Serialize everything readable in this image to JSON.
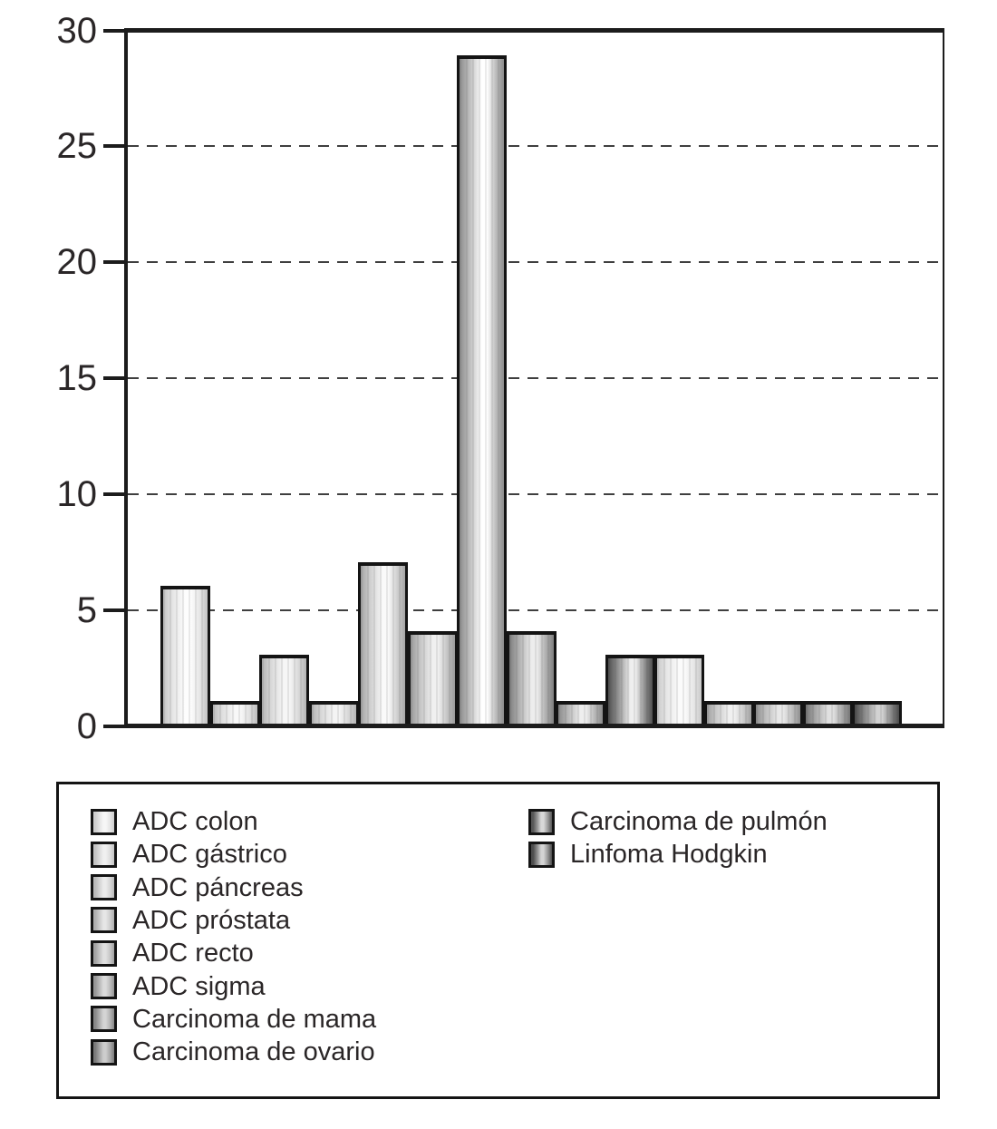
{
  "figure": {
    "background": "#ffffff"
  },
  "colors": {
    "axis": "#1c1c1c",
    "text": "#2a2627",
    "grid": "#3f3f3f",
    "bar_border": "#141414",
    "legend_border": "#141414"
  },
  "chart_data": {
    "type": "bar",
    "title": "",
    "xlabel": "",
    "ylabel": "",
    "ylim": [
      0,
      30
    ],
    "yticks": [
      0,
      5,
      10,
      15,
      20,
      25,
      30
    ],
    "gridlines_at": [
      5,
      10,
      15,
      20,
      25
    ],
    "grid_style": "horizontal-dashed",
    "x_tick_labels": [],
    "values": [
      6,
      1,
      3,
      1,
      7,
      4,
      29,
      4,
      1,
      3,
      3,
      1,
      1,
      1,
      1
    ],
    "bars": [
      {
        "value": 6,
        "edge": "#c2c2c2",
        "mid": "#e6e6e6",
        "hi": "#fdfdfd"
      },
      {
        "value": 1,
        "edge": "#bdbdbd",
        "mid": "#e0e0e0",
        "hi": "#f8f8f8"
      },
      {
        "value": 3,
        "edge": "#b5b5b5",
        "mid": "#dadada",
        "hi": "#f6f6f6"
      },
      {
        "value": 1,
        "edge": "#b5b5b5",
        "mid": "#d8d8d8",
        "hi": "#f4f4f4"
      },
      {
        "value": 7,
        "edge": "#a5a5a5",
        "mid": "#d0d0d0",
        "hi": "#fafafa"
      },
      {
        "value": 4,
        "edge": "#9b9b9b",
        "mid": "#c6c6c6",
        "hi": "#f0f0f0"
      },
      {
        "value": 29,
        "edge": "#8d8d8d",
        "mid": "#bcbcbc",
        "hi": "#ffffff"
      },
      {
        "value": 4,
        "edge": "#7f7f7f",
        "mid": "#b0b0b0",
        "hi": "#ededed"
      },
      {
        "value": 1,
        "edge": "#8a8a8a",
        "mid": "#b8b8b8",
        "hi": "#eeeeee"
      },
      {
        "value": 3,
        "edge": "#4f4f4f",
        "mid": "#909090",
        "hi": "#efefef"
      },
      {
        "value": 3,
        "edge": "#c9c9c9",
        "mid": "#e7e7e7",
        "hi": "#fbfbfb"
      },
      {
        "value": 1,
        "edge": "#a0a0a0",
        "mid": "#cccccc",
        "hi": "#f0f0f0"
      },
      {
        "value": 1,
        "edge": "#8f8f8f",
        "mid": "#bebebe",
        "hi": "#e8e8e8"
      },
      {
        "value": 1,
        "edge": "#767676",
        "mid": "#a8a8a8",
        "hi": "#e0e0e0"
      },
      {
        "value": 1,
        "edge": "#4a4a4a",
        "mid": "#888888",
        "hi": "#d2d2d2"
      }
    ],
    "legend": [
      {
        "label": "ADC colon",
        "edge": "#cecece",
        "mid": "#e4e4e4",
        "hi": "#f6f6f6"
      },
      {
        "label": "ADC gástrico",
        "edge": "#c4c4c4",
        "mid": "#dcdcdc",
        "hi": "#f0f0f0"
      },
      {
        "label": "ADC páncreas",
        "edge": "#bababa",
        "mid": "#d4d4d4",
        "hi": "#ebebeb"
      },
      {
        "label": "ADC próstata",
        "edge": "#aeaeae",
        "mid": "#cccccc",
        "hi": "#e6e6e6"
      },
      {
        "label": "ADC recto",
        "edge": "#a2a2a2",
        "mid": "#c4c4c4",
        "hi": "#e0e0e0"
      },
      {
        "label": "ADC sigma",
        "edge": "#969696",
        "mid": "#bababa",
        "hi": "#dadada"
      },
      {
        "label": "Carcinoma de mama",
        "edge": "#888888",
        "mid": "#b0b0b0",
        "hi": "#d4d4d4"
      },
      {
        "label": "Carcinoma de ovario",
        "edge": "#7a7a7a",
        "mid": "#a6a6a6",
        "hi": "#cdcdcd"
      },
      {
        "label": "Carcinoma de pulmón",
        "edge": "#575757",
        "mid": "#969696",
        "hi": "#d8d8d8"
      },
      {
        "label": "Linfoma Hodgkin",
        "edge": "#4d4d4d",
        "mid": "#909090",
        "hi": "#d4d4d4"
      }
    ],
    "legend_columns": [
      8,
      2
    ],
    "legend_position": "boxed-below"
  }
}
